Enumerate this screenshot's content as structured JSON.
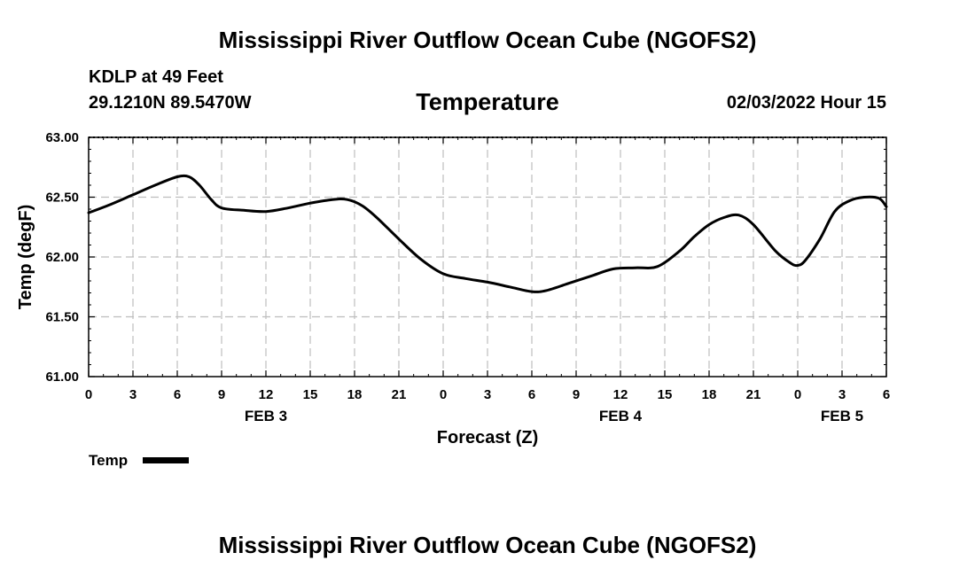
{
  "page": {
    "main_title": "Mississippi River Outflow Ocean Cube (NGOFS2)",
    "footer_title": "Mississippi River Outflow Ocean Cube (NGOFS2)",
    "station_name": "KDLP at 49 Feet",
    "station_coords": "29.1210N  89.5470W",
    "forecast_time": "02/03/2022 Hour 15"
  },
  "chart_data": {
    "type": "line",
    "title": "Temperature",
    "xlabel": "Forecast (Z)",
    "ylabel": "Temp (degF)",
    "xlim": [
      0,
      54
    ],
    "ylim": [
      61.0,
      63.0
    ],
    "grid": true,
    "ytick_labels": [
      "61.00",
      "61.50",
      "62.00",
      "62.50",
      "63.00"
    ],
    "ytick_values": [
      61.0,
      61.5,
      62.0,
      62.5,
      63.0
    ],
    "xtick_values": [
      0,
      3,
      6,
      9,
      12,
      15,
      18,
      21,
      24,
      27,
      30,
      33,
      36,
      39,
      42,
      45,
      48,
      51,
      54
    ],
    "xtick_labels": [
      "0",
      "3",
      "6",
      "9",
      "12",
      "15",
      "18",
      "21",
      "0",
      "3",
      "6",
      "9",
      "12",
      "15",
      "18",
      "21",
      "0",
      "3",
      "6"
    ],
    "day_labels": [
      {
        "label": "FEB 3",
        "x": 12
      },
      {
        "label": "FEB 4",
        "x": 36
      },
      {
        "label": "FEB 5",
        "x": 51
      }
    ],
    "series": [
      {
        "name": "Temp",
        "color": "#000000",
        "x": [
          0,
          1.5,
          3,
          4.5,
          6,
          6.8,
          7.5,
          8.3,
          9,
          10.5,
          12,
          13.5,
          15,
          16.5,
          17.5,
          18.5,
          19.5,
          21,
          22.5,
          24,
          25.5,
          27,
          28.5,
          30,
          31,
          32.5,
          34,
          35.5,
          37,
          38.5,
          40,
          41,
          42,
          43,
          44,
          45,
          46.5,
          47.5,
          48,
          48.5,
          49.5,
          50.5,
          51.5,
          52.5,
          53.5,
          54
        ],
        "values": [
          62.37,
          62.44,
          62.52,
          62.6,
          62.67,
          62.67,
          62.6,
          62.48,
          62.41,
          62.39,
          62.38,
          62.41,
          62.45,
          62.48,
          62.48,
          62.43,
          62.33,
          62.15,
          61.98,
          61.86,
          61.82,
          61.79,
          61.75,
          61.71,
          61.72,
          61.78,
          61.84,
          61.9,
          61.91,
          61.92,
          62.05,
          62.17,
          62.27,
          62.33,
          62.35,
          62.27,
          62.05,
          61.95,
          61.93,
          61.97,
          62.15,
          62.38,
          62.47,
          62.5,
          62.49,
          62.42
        ]
      }
    ],
    "legend": [
      {
        "label": "Temp",
        "placement": "bottom-left"
      }
    ]
  }
}
